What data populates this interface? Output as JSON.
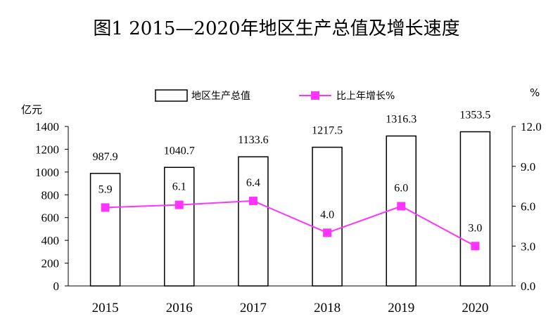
{
  "chart_data": {
    "type": "bar",
    "title": "图1 2015—2020年地区生产总值及增长速度",
    "categories": [
      "2015",
      "2016",
      "2017",
      "2018",
      "2019",
      "2020"
    ],
    "series": [
      {
        "name": "地区生产总值",
        "type": "bar",
        "axis": "left",
        "values": [
          987.9,
          1040.7,
          1133.6,
          1217.5,
          1316.3,
          1353.5
        ]
      },
      {
        "name": "比上年增长%",
        "type": "line",
        "axis": "right",
        "values": [
          5.9,
          6.1,
          6.4,
          4.0,
          6.0,
          3.0
        ]
      }
    ],
    "ylabel_left": "亿元",
    "ylabel_right": "%",
    "ylim_left": [
      0,
      1400
    ],
    "ylim_right": [
      0,
      12
    ],
    "yticks_left": [
      "0",
      "200",
      "400",
      "600",
      "800",
      "1000",
      "1200",
      "1400"
    ],
    "yticks_right": [
      "0.0",
      "3.0",
      "6.0",
      "9.0",
      "12.0"
    ],
    "grid": false,
    "legend_position": "top-center",
    "colors": {
      "bar_fill": "#ffffff",
      "bar_stroke": "#000000",
      "line": "#ff33ff",
      "marker": "#ff33ff"
    }
  }
}
